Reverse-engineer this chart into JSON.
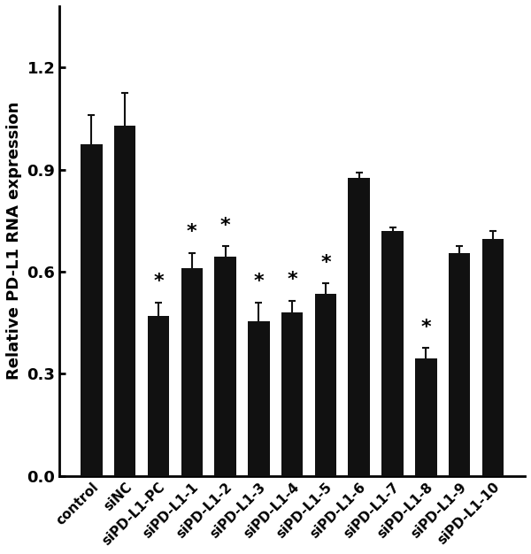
{
  "categories": [
    "control",
    "siNC",
    "siPD-L1-PC",
    "siPD-L1-1",
    "siPD-L1-2",
    "siPD-L1-3",
    "siPD-L1-4",
    "siPD-L1-5",
    "siPD-L1-6",
    "siPD-L1-7",
    "siPD-L1-8",
    "siPD-L1-9",
    "siPD-L1-10"
  ],
  "values": [
    0.975,
    1.03,
    0.47,
    0.61,
    0.645,
    0.455,
    0.48,
    0.535,
    0.875,
    0.72,
    0.345,
    0.655,
    0.695
  ],
  "errors": [
    0.085,
    0.095,
    0.04,
    0.045,
    0.03,
    0.055,
    0.035,
    0.03,
    0.015,
    0.01,
    0.03,
    0.02,
    0.025
  ],
  "has_star": [
    false,
    false,
    true,
    true,
    true,
    true,
    true,
    true,
    false,
    false,
    true,
    false,
    false
  ],
  "bar_color": "#111111",
  "error_color": "#111111",
  "ylabel": "Relative PD-L1 RNA expression",
  "ylim": [
    0.0,
    1.38
  ],
  "yticks": [
    0.0,
    0.3,
    0.6,
    0.9,
    1.2
  ],
  "figsize": [
    6.0,
    6.26
  ],
  "dpi": 100,
  "star_fontsize": 16,
  "ylabel_fontsize": 13,
  "tick_fontsize": 13,
  "xtick_fontsize": 11,
  "bar_width": 0.65
}
